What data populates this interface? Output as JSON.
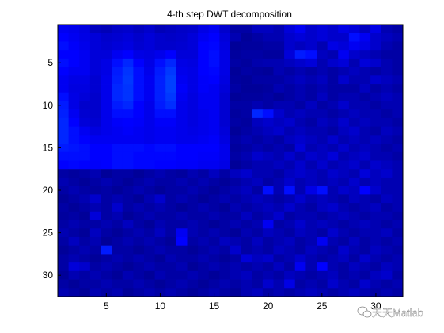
{
  "chart_data": {
    "type": "heatmap",
    "title": "4-th step DWT decomposition",
    "xlabel": "",
    "ylabel": "",
    "xlim": [
      0.5,
      32.5
    ],
    "ylim": [
      0.5,
      32.5
    ],
    "y_reversed": true,
    "x_ticks": [
      5,
      10,
      15,
      20,
      25,
      30
    ],
    "y_ticks": [
      5,
      10,
      15,
      20,
      25,
      30
    ],
    "rows": 32,
    "cols": 32,
    "colormap": [
      "#00007f",
      "#0000ff",
      "#0080ff"
    ],
    "value_range": [
      0,
      1
    ],
    "values": [
      [
        0.45,
        0.42,
        0.38,
        0.25,
        0.22,
        0.28,
        0.3,
        0.25,
        0.3,
        0.22,
        0.25,
        0.28,
        0.3,
        0.4,
        0.45,
        0.3,
        0.15,
        0.15,
        0.25,
        0.25,
        0.2,
        0.35,
        0.45,
        0.3,
        0.35,
        0.3,
        0.4,
        0.35,
        0.25,
        0.4,
        0.2,
        0.15
      ],
      [
        0.5,
        0.45,
        0.4,
        0.35,
        0.3,
        0.32,
        0.35,
        0.3,
        0.35,
        0.3,
        0.28,
        0.3,
        0.35,
        0.45,
        0.5,
        0.35,
        0.2,
        0.1,
        0.15,
        0.2,
        0.2,
        0.3,
        0.35,
        0.3,
        0.35,
        0.3,
        0.3,
        0.55,
        0.45,
        0.3,
        0.25,
        0.2
      ],
      [
        0.55,
        0.48,
        0.42,
        0.35,
        0.32,
        0.35,
        0.38,
        0.32,
        0.35,
        0.3,
        0.3,
        0.32,
        0.35,
        0.5,
        0.52,
        0.38,
        0.1,
        0.12,
        0.12,
        0.15,
        0.15,
        0.3,
        0.25,
        0.3,
        0.2,
        0.4,
        0.35,
        0.45,
        0.4,
        0.3,
        0.2,
        0.15
      ],
      [
        0.5,
        0.5,
        0.45,
        0.35,
        0.35,
        0.45,
        0.5,
        0.4,
        0.38,
        0.42,
        0.5,
        0.35,
        0.35,
        0.5,
        0.55,
        0.4,
        0.12,
        0.15,
        0.15,
        0.12,
        0.12,
        0.35,
        0.6,
        0.55,
        0.25,
        0.2,
        0.45,
        0.3,
        0.25,
        0.2,
        0.15,
        0.15
      ],
      [
        0.55,
        0.5,
        0.45,
        0.35,
        0.4,
        0.55,
        0.65,
        0.5,
        0.4,
        0.55,
        0.65,
        0.4,
        0.38,
        0.5,
        0.55,
        0.4,
        0.15,
        0.12,
        0.18,
        0.2,
        0.2,
        0.25,
        0.3,
        0.35,
        0.2,
        0.3,
        0.35,
        0.2,
        0.35,
        0.3,
        0.2,
        0.15
      ],
      [
        0.5,
        0.45,
        0.45,
        0.35,
        0.4,
        0.6,
        0.7,
        0.55,
        0.42,
        0.6,
        0.72,
        0.42,
        0.4,
        0.5,
        0.52,
        0.4,
        0.1,
        0.15,
        0.12,
        0.1,
        0.2,
        0.15,
        0.2,
        0.15,
        0.2,
        0.15,
        0.2,
        0.25,
        0.2,
        0.15,
        0.2,
        0.15
      ],
      [
        0.45,
        0.4,
        0.4,
        0.32,
        0.42,
        0.62,
        0.72,
        0.55,
        0.45,
        0.62,
        0.75,
        0.45,
        0.4,
        0.48,
        0.5,
        0.38,
        0.12,
        0.1,
        0.15,
        0.15,
        0.15,
        0.2,
        0.25,
        0.2,
        0.25,
        0.15,
        0.3,
        0.2,
        0.2,
        0.3,
        0.25,
        0.2
      ],
      [
        0.45,
        0.38,
        0.38,
        0.32,
        0.42,
        0.65,
        0.7,
        0.55,
        0.45,
        0.62,
        0.75,
        0.48,
        0.4,
        0.48,
        0.45,
        0.35,
        0.15,
        0.1,
        0.1,
        0.12,
        0.2,
        0.15,
        0.2,
        0.15,
        0.2,
        0.15,
        0.15,
        0.15,
        0.25,
        0.15,
        0.2,
        0.15
      ],
      [
        0.55,
        0.4,
        0.35,
        0.3,
        0.42,
        0.65,
        0.7,
        0.55,
        0.45,
        0.62,
        0.72,
        0.45,
        0.38,
        0.45,
        0.45,
        0.32,
        0.1,
        0.12,
        0.12,
        0.15,
        0.1,
        0.15,
        0.2,
        0.15,
        0.25,
        0.15,
        0.2,
        0.2,
        0.15,
        0.2,
        0.25,
        0.2
      ],
      [
        0.6,
        0.4,
        0.3,
        0.3,
        0.42,
        0.6,
        0.65,
        0.5,
        0.42,
        0.6,
        0.68,
        0.42,
        0.38,
        0.45,
        0.45,
        0.32,
        0.15,
        0.15,
        0.2,
        0.15,
        0.2,
        0.2,
        0.15,
        0.25,
        0.15,
        0.2,
        0.3,
        0.2,
        0.2,
        0.15,
        0.2,
        0.2
      ],
      [
        0.62,
        0.45,
        0.32,
        0.3,
        0.42,
        0.55,
        0.55,
        0.5,
        0.42,
        0.55,
        0.55,
        0.42,
        0.38,
        0.42,
        0.45,
        0.32,
        0.12,
        0.15,
        0.65,
        0.55,
        0.3,
        0.2,
        0.25,
        0.2,
        0.2,
        0.15,
        0.2,
        0.25,
        0.2,
        0.2,
        0.15,
        0.2
      ],
      [
        0.65,
        0.5,
        0.35,
        0.32,
        0.42,
        0.48,
        0.5,
        0.48,
        0.42,
        0.48,
        0.48,
        0.42,
        0.38,
        0.42,
        0.45,
        0.32,
        0.15,
        0.12,
        0.25,
        0.3,
        0.25,
        0.3,
        0.2,
        0.15,
        0.25,
        0.2,
        0.3,
        0.2,
        0.25,
        0.2,
        0.2,
        0.15
      ],
      [
        0.65,
        0.55,
        0.45,
        0.38,
        0.42,
        0.45,
        0.48,
        0.45,
        0.42,
        0.45,
        0.45,
        0.42,
        0.4,
        0.42,
        0.45,
        0.35,
        0.1,
        0.15,
        0.2,
        0.25,
        0.3,
        0.2,
        0.25,
        0.2,
        0.2,
        0.15,
        0.25,
        0.3,
        0.2,
        0.15,
        0.25,
        0.2
      ],
      [
        0.65,
        0.55,
        0.5,
        0.45,
        0.45,
        0.45,
        0.45,
        0.45,
        0.42,
        0.45,
        0.45,
        0.42,
        0.42,
        0.45,
        0.48,
        0.38,
        0.15,
        0.2,
        0.15,
        0.2,
        0.15,
        0.25,
        0.3,
        0.25,
        0.2,
        0.3,
        0.2,
        0.25,
        0.2,
        0.25,
        0.2,
        0.15
      ],
      [
        0.6,
        0.58,
        0.55,
        0.5,
        0.5,
        0.55,
        0.55,
        0.55,
        0.52,
        0.55,
        0.55,
        0.5,
        0.5,
        0.5,
        0.5,
        0.42,
        0.12,
        0.15,
        0.2,
        0.15,
        0.2,
        0.15,
        0.35,
        0.2,
        0.25,
        0.2,
        0.3,
        0.2,
        0.25,
        0.2,
        0.15,
        0.2
      ],
      [
        0.55,
        0.55,
        0.55,
        0.5,
        0.5,
        0.55,
        0.55,
        0.52,
        0.52,
        0.52,
        0.52,
        0.5,
        0.5,
        0.48,
        0.48,
        0.42,
        0.15,
        0.2,
        0.3,
        0.25,
        0.2,
        0.3,
        0.2,
        0.3,
        0.25,
        0.35,
        0.2,
        0.25,
        0.3,
        0.2,
        0.2,
        0.15
      ],
      [
        0.5,
        0.52,
        0.5,
        0.48,
        0.5,
        0.55,
        0.55,
        0.52,
        0.52,
        0.5,
        0.5,
        0.48,
        0.48,
        0.45,
        0.45,
        0.4,
        0.1,
        0.15,
        0.2,
        0.2,
        0.25,
        0.2,
        0.3,
        0.2,
        0.3,
        0.2,
        0.25,
        0.3,
        0.2,
        0.3,
        0.25,
        0.2
      ],
      [
        0.15,
        0.12,
        0.15,
        0.2,
        0.1,
        0.15,
        0.15,
        0.1,
        0.15,
        0.2,
        0.15,
        0.12,
        0.2,
        0.15,
        0.25,
        0.15,
        0.25,
        0.3,
        0.2,
        0.2,
        0.15,
        0.25,
        0.3,
        0.25,
        0.2,
        0.3,
        0.25,
        0.2,
        0.35,
        0.25,
        0.3,
        0.2
      ],
      [
        0.2,
        0.15,
        0.1,
        0.15,
        0.2,
        0.15,
        0.1,
        0.15,
        0.2,
        0.15,
        0.15,
        0.2,
        0.15,
        0.2,
        0.15,
        0.1,
        0.15,
        0.2,
        0.25,
        0.15,
        0.2,
        0.3,
        0.2,
        0.25,
        0.2,
        0.25,
        0.2,
        0.3,
        0.2,
        0.25,
        0.2,
        0.2
      ],
      [
        0.15,
        0.2,
        0.15,
        0.12,
        0.15,
        0.1,
        0.15,
        0.2,
        0.15,
        0.1,
        0.15,
        0.15,
        0.2,
        0.15,
        0.1,
        0.15,
        0.2,
        0.25,
        0.15,
        0.55,
        0.2,
        0.55,
        0.2,
        0.4,
        0.55,
        0.2,
        0.3,
        0.25,
        0.5,
        0.3,
        0.2,
        0.2
      ],
      [
        0.1,
        0.15,
        0.2,
        0.3,
        0.15,
        0.2,
        0.15,
        0.1,
        0.2,
        0.3,
        0.15,
        0.2,
        0.15,
        0.1,
        0.15,
        0.2,
        0.15,
        0.2,
        0.25,
        0.2,
        0.15,
        0.2,
        0.3,
        0.2,
        0.25,
        0.2,
        0.15,
        0.25,
        0.2,
        0.15,
        0.25,
        0.2
      ],
      [
        0.15,
        0.1,
        0.15,
        0.2,
        0.15,
        0.3,
        0.15,
        0.2,
        0.15,
        0.2,
        0.15,
        0.1,
        0.15,
        0.2,
        0.15,
        0.1,
        0.2,
        0.15,
        0.2,
        0.25,
        0.2,
        0.3,
        0.2,
        0.15,
        0.25,
        0.3,
        0.2,
        0.15,
        0.2,
        0.25,
        0.15,
        0.2
      ],
      [
        0.12,
        0.15,
        0.1,
        0.35,
        0.15,
        0.2,
        0.1,
        0.15,
        0.2,
        0.15,
        0.15,
        0.2,
        0.15,
        0.15,
        0.2,
        0.15,
        0.15,
        0.25,
        0.15,
        0.2,
        0.3,
        0.15,
        0.2,
        0.2,
        0.15,
        0.2,
        0.25,
        0.2,
        0.15,
        0.2,
        0.2,
        0.15
      ],
      [
        0.15,
        0.2,
        0.15,
        0.15,
        0.2,
        0.15,
        0.25,
        0.15,
        0.1,
        0.2,
        0.15,
        0.15,
        0.2,
        0.15,
        0.1,
        0.15,
        0.2,
        0.15,
        0.2,
        0.45,
        0.15,
        0.2,
        0.3,
        0.2,
        0.25,
        0.2,
        0.15,
        0.2,
        0.25,
        0.2,
        0.15,
        0.2
      ],
      [
        0.2,
        0.15,
        0.1,
        0.25,
        0.15,
        0.1,
        0.15,
        0.2,
        0.15,
        0.25,
        0.15,
        0.45,
        0.2,
        0.15,
        0.2,
        0.15,
        0.1,
        0.2,
        0.15,
        0.25,
        0.2,
        0.15,
        0.25,
        0.2,
        0.15,
        0.3,
        0.2,
        0.15,
        0.2,
        0.2,
        0.25,
        0.15
      ],
      [
        0.15,
        0.25,
        0.15,
        0.2,
        0.1,
        0.15,
        0.2,
        0.15,
        0.2,
        0.15,
        0.1,
        0.5,
        0.15,
        0.2,
        0.15,
        0.25,
        0.2,
        0.15,
        0.25,
        0.15,
        0.2,
        0.25,
        0.15,
        0.2,
        0.45,
        0.2,
        0.15,
        0.25,
        0.15,
        0.2,
        0.15,
        0.2
      ],
      [
        0.1,
        0.15,
        0.2,
        0.15,
        0.6,
        0.15,
        0.15,
        0.1,
        0.15,
        0.2,
        0.15,
        0.15,
        0.1,
        0.15,
        0.2,
        0.15,
        0.3,
        0.15,
        0.2,
        0.15,
        0.25,
        0.2,
        0.15,
        0.25,
        0.2,
        0.15,
        0.3,
        0.2,
        0.15,
        0.25,
        0.2,
        0.15
      ],
      [
        0.15,
        0.2,
        0.15,
        0.1,
        0.15,
        0.2,
        0.15,
        0.2,
        0.15,
        0.1,
        0.2,
        0.15,
        0.15,
        0.2,
        0.15,
        0.1,
        0.15,
        0.35,
        0.25,
        0.3,
        0.15,
        0.2,
        0.3,
        0.2,
        0.15,
        0.2,
        0.25,
        0.15,
        0.3,
        0.2,
        0.15,
        0.2
      ],
      [
        0.15,
        0.35,
        0.3,
        0.15,
        0.2,
        0.15,
        0.1,
        0.15,
        0.2,
        0.15,
        0.15,
        0.2,
        0.1,
        0.15,
        0.2,
        0.15,
        0.2,
        0.15,
        0.2,
        0.15,
        0.25,
        0.15,
        0.45,
        0.2,
        0.5,
        0.2,
        0.15,
        0.25,
        0.2,
        0.15,
        0.25,
        0.2
      ],
      [
        0.1,
        0.2,
        0.15,
        0.2,
        0.15,
        0.1,
        0.2,
        0.15,
        0.1,
        0.2,
        0.15,
        0.15,
        0.2,
        0.15,
        0.1,
        0.15,
        0.2,
        0.25,
        0.15,
        0.2,
        0.15,
        0.25,
        0.2,
        0.15,
        0.2,
        0.25,
        0.15,
        0.2,
        0.15,
        0.25,
        0.3,
        0.15
      ],
      [
        0.15,
        0.1,
        0.15,
        0.15,
        0.2,
        0.15,
        0.15,
        0.2,
        0.15,
        0.1,
        0.15,
        0.2,
        0.15,
        0.1,
        0.15,
        0.2,
        0.15,
        0.2,
        0.15,
        0.3,
        0.2,
        0.4,
        0.15,
        0.2,
        0.15,
        0.3,
        0.2,
        0.15,
        0.3,
        0.2,
        0.15,
        0.2
      ],
      [
        0.2,
        0.15,
        0.1,
        0.2,
        0.15,
        0.2,
        0.1,
        0.15,
        0.2,
        0.15,
        0.2,
        0.15,
        0.1,
        0.15,
        0.2,
        0.15,
        0.1,
        0.2,
        0.25,
        0.15,
        0.2,
        0.15,
        0.2,
        0.25,
        0.2,
        0.15,
        0.2,
        0.25,
        0.2,
        0.15,
        0.2,
        0.15
      ]
    ]
  },
  "watermark": {
    "text": "天天Matlab",
    "icon": "wechat-icon"
  }
}
